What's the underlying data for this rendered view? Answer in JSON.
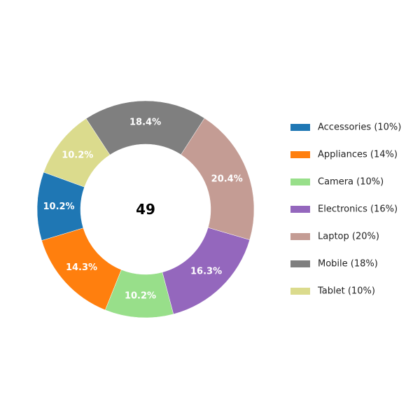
{
  "chart_data": {
    "type": "pie",
    "variant": "donut",
    "center_text": "49",
    "slices": [
      {
        "category": "Accessories",
        "count": 5,
        "percent_label": "10.2%",
        "legend": "Accessories (10%)",
        "color": "#1f77b4"
      },
      {
        "category": "Appliances",
        "count": 7,
        "percent_label": "14.3%",
        "legend": "Appliances (14%)",
        "color": "#ff7f0e"
      },
      {
        "category": "Camera",
        "count": 5,
        "percent_label": "10.2%",
        "legend": "Camera (10%)",
        "color": "#98df8a"
      },
      {
        "category": "Electronics",
        "count": 8,
        "percent_label": "16.3%",
        "legend": "Electronics (16%)",
        "color": "#9467bd"
      },
      {
        "category": "Laptop",
        "count": 10,
        "percent_label": "20.4%",
        "legend": "Laptop (20%)",
        "color": "#c49c94"
      },
      {
        "category": "Mobile",
        "count": 9,
        "percent_label": "18.4%",
        "legend": "Mobile (18%)",
        "color": "#7f7f7f"
      },
      {
        "category": "Tablet",
        "count": 5,
        "percent_label": "10.2%",
        "legend": "Tablet (10%)",
        "color": "#dbdb8d"
      }
    ],
    "start_angle_deg": 160,
    "direction": "counterclockwise",
    "legend_position": "right"
  }
}
